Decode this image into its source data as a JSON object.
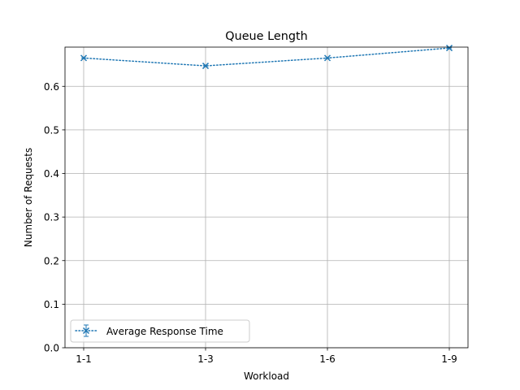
{
  "chart_data": {
    "type": "line",
    "title": "Queue Length",
    "xlabel": "Workload",
    "ylabel": "Number of Requests",
    "categories": [
      "1-1",
      "1-3",
      "1-6",
      "1-9"
    ],
    "ylim": [
      0,
      0.69
    ],
    "yticks": [
      "0.0",
      "0.1",
      "0.2",
      "0.3",
      "0.4",
      "0.5",
      "0.6"
    ],
    "grid": true,
    "legend_position": "lower-left",
    "series": [
      {
        "name": "Average Response Time",
        "values": [
          0.665,
          0.647,
          0.665,
          0.688
        ],
        "color": "#1f77b4",
        "line_style": "dotted",
        "marker": "x",
        "error_bars": true
      }
    ]
  }
}
